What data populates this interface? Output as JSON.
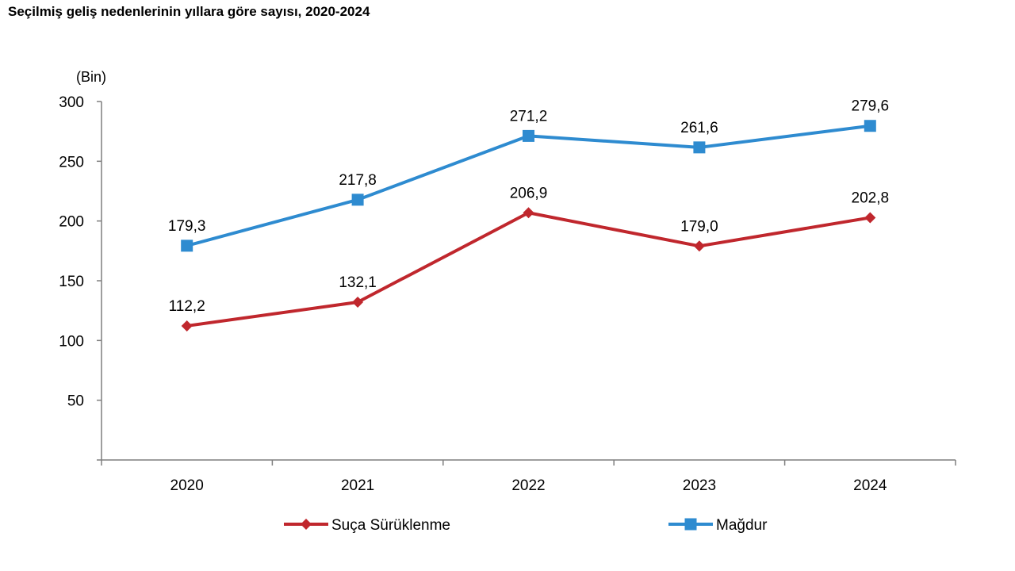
{
  "title": "Seçilmiş geliş nedenlerinin yıllara göre sayısı, 2020-2024",
  "chart_data": {
    "type": "line",
    "title": "Seçilmiş geliş nedenlerinin yıllara göre sayısı, 2020-2024",
    "unit_label": "(Bin)",
    "xlabel": "",
    "ylabel": "",
    "categories": [
      "2020",
      "2021",
      "2022",
      "2023",
      "2024"
    ],
    "ylim": [
      0,
      300
    ],
    "yticks": [
      50,
      100,
      150,
      200,
      250,
      300
    ],
    "grid": false,
    "legend_position": "bottom",
    "series": [
      {
        "name": "Suça Sürüklenme",
        "values": [
          112.2,
          132.1,
          206.9,
          179.0,
          202.8
        ],
        "labels": [
          "112,2",
          "132,1",
          "206,9",
          "179,0",
          "202,8"
        ],
        "color": "#C0272D",
        "marker": "diamond"
      },
      {
        "name": "Mağdur",
        "values": [
          179.3,
          217.8,
          271.2,
          261.6,
          279.6
        ],
        "labels": [
          "179,3",
          "217,8",
          "271,2",
          "261,6",
          "279,6"
        ],
        "color": "#2E8BD0",
        "marker": "square"
      }
    ]
  }
}
